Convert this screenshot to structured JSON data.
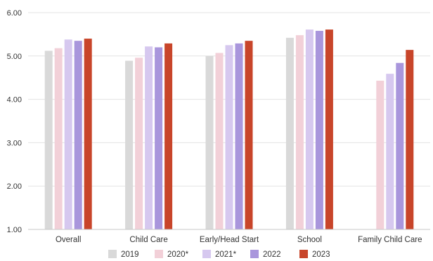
{
  "chart_data": {
    "type": "bar",
    "categories": [
      "Overall",
      "Child Care",
      "Early/Head Start",
      "School",
      "Family Child Care"
    ],
    "series": [
      {
        "name": "2019",
        "color": "#d9d9d9",
        "values": [
          5.12,
          4.89,
          5.0,
          5.42,
          null
        ]
      },
      {
        "name": "2020*",
        "color": "#f2d0d8",
        "values": [
          5.18,
          4.96,
          5.07,
          5.48,
          4.43
        ]
      },
      {
        "name": "2021*",
        "color": "#d6c8ef",
        "values": [
          5.38,
          5.22,
          5.25,
          5.61,
          4.59
        ]
      },
      {
        "name": "2022",
        "color": "#a996dc",
        "values": [
          5.35,
          5.2,
          5.29,
          5.58,
          4.84
        ]
      },
      {
        "name": "2023",
        "color": "#c8452a",
        "values": [
          5.4,
          5.29,
          5.35,
          5.61,
          5.14
        ]
      }
    ],
    "ylim": [
      1.0,
      6.0
    ],
    "yticks": [
      "1.00",
      "2.00",
      "3.00",
      "4.00",
      "5.00",
      "6.00"
    ],
    "grid": true,
    "legend_position": "bottom",
    "title": "",
    "xlabel": "",
    "ylabel": ""
  }
}
